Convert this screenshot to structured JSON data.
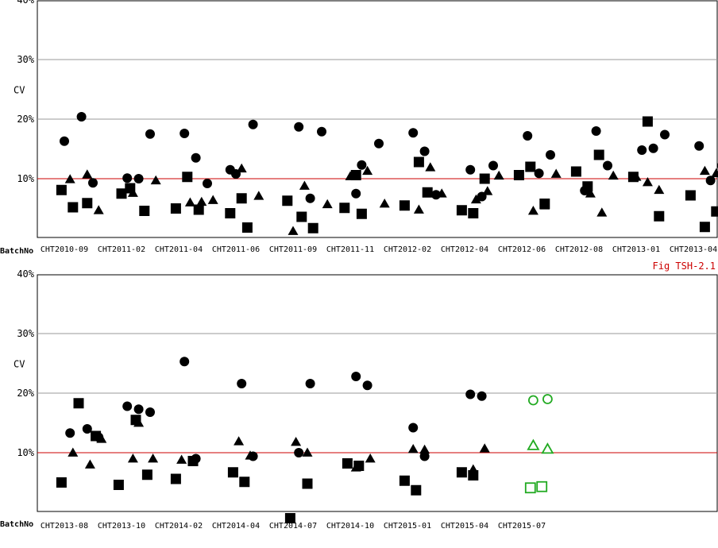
{
  "colors": {
    "reference": "#cc0000",
    "grid": "#999999",
    "current": "#22aa22",
    "past": "#000000"
  },
  "chart_data": [
    {
      "type": "scatter",
      "ylabel": "CV",
      "xlabel": "BatchNo",
      "ylim": [
        0,
        40
      ],
      "y_ticks": [
        "40%",
        "30%",
        "20%",
        "10%"
      ],
      "y_tick_values": [
        40,
        30,
        20,
        10
      ],
      "reference_line": 10,
      "annotation": "Fig TSH-2.1",
      "categories": [
        "CHT2010-09",
        "CHT2011-02",
        "CHT2011-04",
        "CHT2011-06",
        "CHT2011-09",
        "CHT2011-11",
        "CHT2012-02",
        "CHT2012-04",
        "CHT2012-06",
        "CHT2012-08",
        "CHT2013-01",
        "CHT2013-04"
      ],
      "series": [
        {
          "marker": "circle",
          "color": "past",
          "points": [
            [
              0,
              16.3
            ],
            [
              0.3,
              20.4
            ],
            [
              0.5,
              9.3
            ],
            [
              1.1,
              10.1
            ],
            [
              1.3,
              10.0
            ],
            [
              1.5,
              17.5
            ],
            [
              2.1,
              17.6
            ],
            [
              2.3,
              13.5
            ],
            [
              2.5,
              9.2
            ],
            [
              2.9,
              11.5
            ],
            [
              3.0,
              10.8
            ],
            [
              3.3,
              19.1
            ],
            [
              4.1,
              18.7
            ],
            [
              4.3,
              6.7
            ],
            [
              4.5,
              17.9
            ],
            [
              5.1,
              7.5
            ],
            [
              5.2,
              12.3
            ],
            [
              5.5,
              15.9
            ],
            [
              6.1,
              17.7
            ],
            [
              6.3,
              14.6
            ],
            [
              6.5,
              7.3
            ],
            [
              7.1,
              11.5
            ],
            [
              7.3,
              7.0
            ],
            [
              7.5,
              12.2
            ],
            [
              8.1,
              17.2
            ],
            [
              8.3,
              10.9
            ],
            [
              8.5,
              14.0
            ],
            [
              9.1,
              8.0
            ],
            [
              9.3,
              18.0
            ],
            [
              9.5,
              12.2
            ],
            [
              10.1,
              14.8
            ],
            [
              10.3,
              15.1
            ],
            [
              10.5,
              17.4
            ],
            [
              11.1,
              15.5
            ],
            [
              11.3,
              9.7
            ],
            [
              11.5,
              12.2
            ]
          ]
        },
        {
          "marker": "triangle",
          "color": "past",
          "points": [
            [
              0.1,
              9.9
            ],
            [
              0.4,
              10.7
            ],
            [
              0.6,
              4.7
            ],
            [
              1.2,
              7.6
            ],
            [
              1.6,
              9.7
            ],
            [
              2.2,
              6.0
            ],
            [
              2.4,
              6.1
            ],
            [
              2.6,
              6.4
            ],
            [
              3.1,
              11.7
            ],
            [
              3.4,
              7.1
            ],
            [
              4.0,
              1.2
            ],
            [
              4.2,
              8.8
            ],
            [
              4.6,
              5.7
            ],
            [
              5.0,
              10.4
            ],
            [
              5.3,
              11.3
            ],
            [
              5.6,
              5.8
            ],
            [
              6.2,
              4.8
            ],
            [
              6.4,
              11.9
            ],
            [
              6.6,
              7.5
            ],
            [
              7.2,
              6.5
            ],
            [
              7.4,
              7.9
            ],
            [
              7.6,
              10.5
            ],
            [
              8.2,
              4.6
            ],
            [
              8.4,
              5.5
            ],
            [
              8.6,
              10.8
            ],
            [
              9.2,
              7.5
            ],
            [
              9.4,
              4.3
            ],
            [
              9.6,
              10.5
            ],
            [
              10.0,
              10.3
            ],
            [
              10.2,
              9.4
            ],
            [
              10.4,
              8.1
            ],
            [
              11.2,
              11.3
            ],
            [
              11.4,
              10.9
            ],
            [
              11.6,
              10.8
            ]
          ]
        },
        {
          "marker": "square",
          "color": "past",
          "points": [
            [
              -0.05,
              8.1
            ],
            [
              0.15,
              5.2
            ],
            [
              0.4,
              5.9
            ],
            [
              1.0,
              7.5
            ],
            [
              1.15,
              8.4
            ],
            [
              1.4,
              4.6
            ],
            [
              1.95,
              5.0
            ],
            [
              2.15,
              10.3
            ],
            [
              2.35,
              4.8
            ],
            [
              2.9,
              4.2
            ],
            [
              3.1,
              6.7
            ],
            [
              3.2,
              1.8
            ],
            [
              3.9,
              6.3
            ],
            [
              4.15,
              3.6
            ],
            [
              4.35,
              1.7
            ],
            [
              4.9,
              5.1
            ],
            [
              5.1,
              10.6
            ],
            [
              5.2,
              4.1
            ],
            [
              5.95,
              5.5
            ],
            [
              6.2,
              12.8
            ],
            [
              6.35,
              7.7
            ],
            [
              6.95,
              4.7
            ],
            [
              7.15,
              4.2
            ],
            [
              7.35,
              10.0
            ],
            [
              7.95,
              10.6
            ],
            [
              8.15,
              12.0
            ],
            [
              8.4,
              5.8
            ],
            [
              8.95,
              11.2
            ],
            [
              9.15,
              8.7
            ],
            [
              9.35,
              14.0
            ],
            [
              9.95,
              10.3
            ],
            [
              10.2,
              19.6
            ],
            [
              10.4,
              3.7
            ],
            [
              10.95,
              7.2
            ],
            [
              11.2,
              1.9
            ],
            [
              11.4,
              4.5
            ]
          ]
        }
      ]
    },
    {
      "type": "scatter",
      "ylabel": "CV",
      "xlabel": "BatchNo",
      "ylim": [
        0,
        40
      ],
      "y_ticks": [
        "40%",
        "30%",
        "20%",
        "10%"
      ],
      "y_tick_values": [
        40,
        30,
        20,
        10
      ],
      "reference_line": 10,
      "categories": [
        "CHT2013-08",
        "CHT2013-10",
        "CHT2014-02",
        "CHT2014-04",
        "CHT2014-07",
        "CHT2014-10",
        "CHT2015-01",
        "CHT2015-04",
        "CHT2015-07"
      ],
      "series": [
        {
          "marker": "circle",
          "color": "past",
          "points": [
            [
              0.1,
              13.3
            ],
            [
              0.4,
              14.0
            ],
            [
              0.6,
              12.6
            ],
            [
              1.1,
              17.8
            ],
            [
              1.3,
              17.3
            ],
            [
              1.5,
              16.8
            ],
            [
              2.1,
              25.3
            ],
            [
              2.3,
              9.0
            ],
            [
              3.1,
              21.6
            ],
            [
              3.3,
              9.4
            ],
            [
              4.1,
              10.0
            ],
            [
              4.3,
              21.6
            ],
            [
              5.1,
              22.8
            ],
            [
              5.3,
              21.3
            ],
            [
              6.1,
              14.2
            ],
            [
              6.3,
              9.4
            ],
            [
              7.1,
              19.8
            ],
            [
              7.3,
              19.5
            ]
          ]
        },
        {
          "marker": "triangle",
          "color": "past",
          "points": [
            [
              0.15,
              10.0
            ],
            [
              0.45,
              8.0
            ],
            [
              0.65,
              12.3
            ],
            [
              1.2,
              9.0
            ],
            [
              1.3,
              15.0
            ],
            [
              1.55,
              9.0
            ],
            [
              2.05,
              8.8
            ],
            [
              2.25,
              8.5
            ],
            [
              3.05,
              11.9
            ],
            [
              3.25,
              9.5
            ],
            [
              4.05,
              11.8
            ],
            [
              4.25,
              10.0
            ],
            [
              5.1,
              7.5
            ],
            [
              5.35,
              9.0
            ],
            [
              6.1,
              10.6
            ],
            [
              6.3,
              10.5
            ],
            [
              7.15,
              7.2
            ],
            [
              7.35,
              10.7
            ]
          ]
        },
        {
          "marker": "square",
          "color": "past",
          "points": [
            [
              -0.05,
              5.0
            ],
            [
              0.25,
              18.3
            ],
            [
              0.55,
              12.8
            ],
            [
              0.95,
              4.6
            ],
            [
              1.25,
              15.5
            ],
            [
              1.45,
              6.3
            ],
            [
              1.95,
              5.6
            ],
            [
              2.25,
              8.6
            ],
            [
              2.95,
              6.7
            ],
            [
              3.15,
              5.1
            ],
            [
              3.95,
              -1.0
            ],
            [
              4.25,
              4.8
            ],
            [
              4.95,
              8.2
            ],
            [
              5.15,
              7.8
            ],
            [
              5.95,
              5.3
            ],
            [
              6.15,
              3.7
            ],
            [
              6.95,
              6.7
            ],
            [
              7.15,
              6.2
            ]
          ]
        },
        {
          "marker": "circle",
          "color": "current",
          "hollow": true,
          "points": [
            [
              8.2,
              18.8
            ],
            [
              8.45,
              19.0
            ]
          ]
        },
        {
          "marker": "triangle",
          "color": "current",
          "hollow": true,
          "points": [
            [
              8.2,
              11.2
            ],
            [
              8.45,
              10.6
            ]
          ]
        },
        {
          "marker": "square",
          "color": "current",
          "hollow": true,
          "points": [
            [
              8.15,
              4.1
            ],
            [
              8.35,
              4.3
            ]
          ]
        }
      ]
    }
  ]
}
